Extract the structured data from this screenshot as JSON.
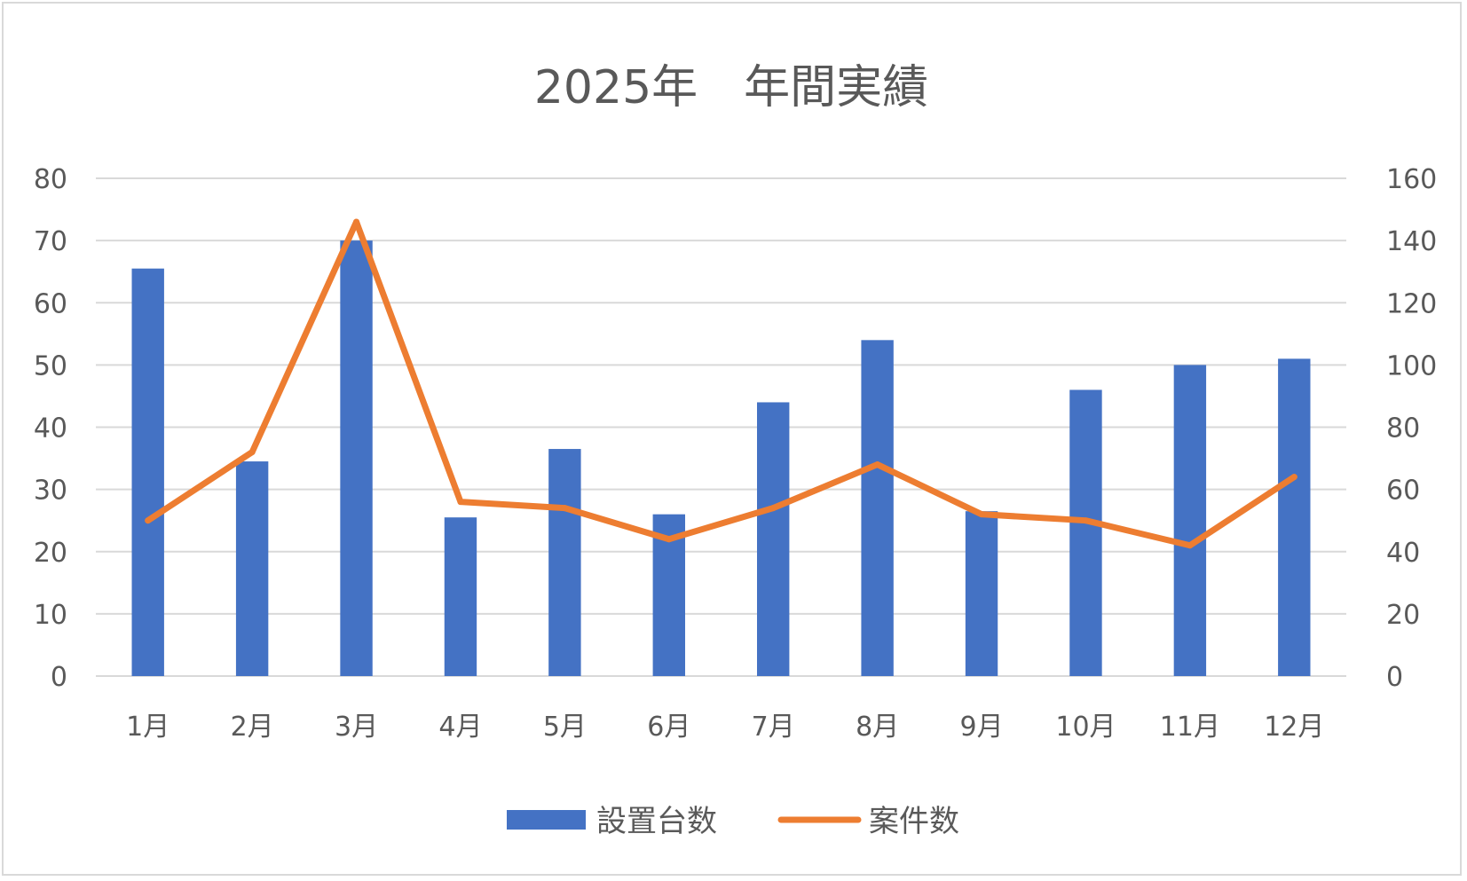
{
  "chart_data": {
    "type": "bar",
    "title": "2025年　年間実績",
    "categories": [
      "1月",
      "2月",
      "3月",
      "4月",
      "5月",
      "6月",
      "7月",
      "8月",
      "9月",
      "10月",
      "11月",
      "12月"
    ],
    "series": [
      {
        "name": "設置台数",
        "type": "bar",
        "axis": "left",
        "color": "#4472c4",
        "values": [
          65.5,
          34.5,
          70,
          25.5,
          36.5,
          26,
          44,
          54,
          26.5,
          46,
          50,
          51
        ]
      },
      {
        "name": "案件数",
        "type": "line",
        "axis": "right",
        "color": "#ed7d31",
        "values": [
          50,
          72,
          146,
          56,
          54,
          44,
          54,
          68,
          52,
          50,
          42,
          64
        ]
      }
    ],
    "ylim": [
      0,
      80
    ],
    "yticks": [
      0,
      10,
      20,
      30,
      40,
      50,
      60,
      70,
      80
    ],
    "y2lim": [
      0,
      160
    ],
    "y2ticks": [
      0,
      20,
      40,
      60,
      80,
      100,
      120,
      140,
      160
    ],
    "grid": true,
    "legend_position": "bottom"
  }
}
